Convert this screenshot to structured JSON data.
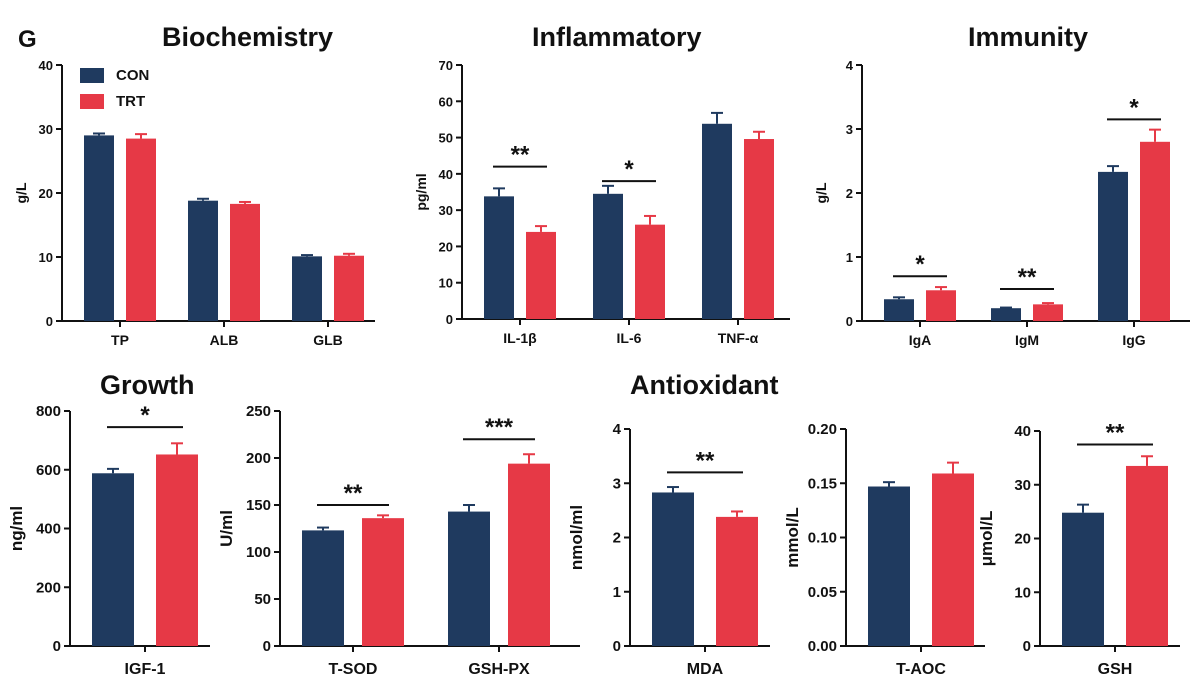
{
  "figure": {
    "panel_label": "G",
    "section_titles": {
      "biochemistry": "Biochemistry",
      "inflammatory": "Inflammatory",
      "immunity": "Immunity",
      "growth": "Growth",
      "antioxidant": "Antioxidant"
    },
    "legend": [
      {
        "name": "CON",
        "color": "#1f3a5f"
      },
      {
        "name": "TRT",
        "color": "#e63946"
      }
    ]
  },
  "chart_data": [
    {
      "id": "biochemistry",
      "type": "bar",
      "title": "Biochemistry",
      "ylabel": "g/L",
      "categories": [
        "TP",
        "ALB",
        "GLB"
      ],
      "ylim": [
        0,
        40
      ],
      "yticks": [
        "0",
        "10",
        "20",
        "30",
        "40"
      ],
      "series": [
        {
          "name": "CON",
          "values": [
            29.0,
            18.8,
            10.1
          ],
          "errors": [
            0.3,
            0.3,
            0.2
          ]
        },
        {
          "name": "TRT",
          "values": [
            28.5,
            18.3,
            10.2
          ],
          "errors": [
            0.7,
            0.3,
            0.3
          ]
        }
      ],
      "significance": []
    },
    {
      "id": "inflammatory",
      "type": "bar",
      "title": "Inflammatory",
      "ylabel": "pg/ml",
      "categories": [
        "IL-1β",
        "IL-6",
        "TNF-α"
      ],
      "ylim": [
        0,
        70
      ],
      "yticks": [
        "0",
        "10",
        "20",
        "30",
        "40",
        "50",
        "60",
        "70"
      ],
      "series": [
        {
          "name": "CON",
          "values": [
            33.8,
            34.5,
            53.8
          ],
          "errors": [
            2.2,
            2.2,
            3.0
          ]
        },
        {
          "name": "TRT",
          "values": [
            24.0,
            26.0,
            49.6
          ],
          "errors": [
            1.6,
            2.4,
            2.0
          ]
        }
      ],
      "significance": [
        {
          "category": 0,
          "label": "**",
          "level": 42
        },
        {
          "category": 1,
          "label": "*",
          "level": 38
        }
      ]
    },
    {
      "id": "immunity",
      "type": "bar",
      "title": "Immunity",
      "ylabel": "g/L",
      "categories": [
        "IgA",
        "IgM",
        "IgG"
      ],
      "ylim": [
        0,
        4
      ],
      "yticks": [
        "0",
        "1",
        "2",
        "3",
        "4"
      ],
      "series": [
        {
          "name": "CON",
          "values": [
            0.34,
            0.2,
            2.33
          ],
          "errors": [
            0.03,
            0.01,
            0.09
          ]
        },
        {
          "name": "TRT",
          "values": [
            0.48,
            0.26,
            2.8
          ],
          "errors": [
            0.05,
            0.02,
            0.19
          ]
        }
      ],
      "significance": [
        {
          "category": 0,
          "label": "*",
          "level": 0.7
        },
        {
          "category": 1,
          "label": "**",
          "level": 0.5
        },
        {
          "category": 2,
          "label": "*",
          "level": 3.15
        }
      ]
    },
    {
      "id": "growth",
      "type": "bar",
      "title": "Growth",
      "ylabel": "ng/ml",
      "categories": [
        "IGF-1"
      ],
      "ylim": [
        0,
        800
      ],
      "yticks": [
        "0",
        "200",
        "400",
        "600",
        "800"
      ],
      "series": [
        {
          "name": "CON",
          "values": [
            588
          ],
          "errors": [
            15
          ]
        },
        {
          "name": "TRT",
          "values": [
            652
          ],
          "errors": [
            38
          ]
        }
      ],
      "significance": [
        {
          "category": 0,
          "label": "*",
          "level": 745
        }
      ]
    },
    {
      "id": "antioxidant-sod-gshpx",
      "type": "bar",
      "title": "Antioxidant",
      "ylabel": "U/ml",
      "categories": [
        "T-SOD",
        "GSH-PX"
      ],
      "ylim": [
        0,
        250
      ],
      "yticks": [
        "0",
        "50",
        "100",
        "150",
        "200",
        "250"
      ],
      "series": [
        {
          "name": "CON",
          "values": [
            123,
            143
          ],
          "errors": [
            3,
            7
          ]
        },
        {
          "name": "TRT",
          "values": [
            136,
            194
          ],
          "errors": [
            3,
            10
          ]
        }
      ],
      "significance": [
        {
          "category": 0,
          "label": "**",
          "level": 150
        },
        {
          "category": 1,
          "label": "***",
          "level": 220
        }
      ]
    },
    {
      "id": "antioxidant-mda",
      "type": "bar",
      "title": "Antioxidant",
      "ylabel": "nmol/ml",
      "categories": [
        "MDA"
      ],
      "ylim": [
        0,
        4
      ],
      "yticks": [
        "0",
        "1",
        "2",
        "3",
        "4"
      ],
      "series": [
        {
          "name": "CON",
          "values": [
            2.83
          ],
          "errors": [
            0.1
          ]
        },
        {
          "name": "TRT",
          "values": [
            2.38
          ],
          "errors": [
            0.1
          ]
        }
      ],
      "significance": [
        {
          "category": 0,
          "label": "**",
          "level": 3.2
        }
      ]
    },
    {
      "id": "antioxidant-taoc",
      "type": "bar",
      "title": "Antioxidant",
      "ylabel": "mmol/L",
      "categories": [
        "T-AOC"
      ],
      "ylim": [
        0,
        0.2
      ],
      "yticks": [
        "0.00",
        "0.05",
        "0.10",
        "0.15",
        "0.20"
      ],
      "series": [
        {
          "name": "CON",
          "values": [
            0.147
          ],
          "errors": [
            0.004
          ]
        },
        {
          "name": "TRT",
          "values": [
            0.159
          ],
          "errors": [
            0.01
          ]
        }
      ],
      "significance": []
    },
    {
      "id": "antioxidant-gsh",
      "type": "bar",
      "title": "Antioxidant",
      "ylabel": "μmol/L",
      "categories": [
        "GSH"
      ],
      "ylim": [
        0,
        40
      ],
      "yticks": [
        "0",
        "10",
        "20",
        "30",
        "40"
      ],
      "series": [
        {
          "name": "CON",
          "values": [
            24.8
          ],
          "errors": [
            1.5
          ]
        },
        {
          "name": "TRT",
          "values": [
            33.5
          ],
          "errors": [
            1.8
          ]
        }
      ],
      "significance": [
        {
          "category": 0,
          "label": "**",
          "level": 37.5
        }
      ]
    }
  ]
}
